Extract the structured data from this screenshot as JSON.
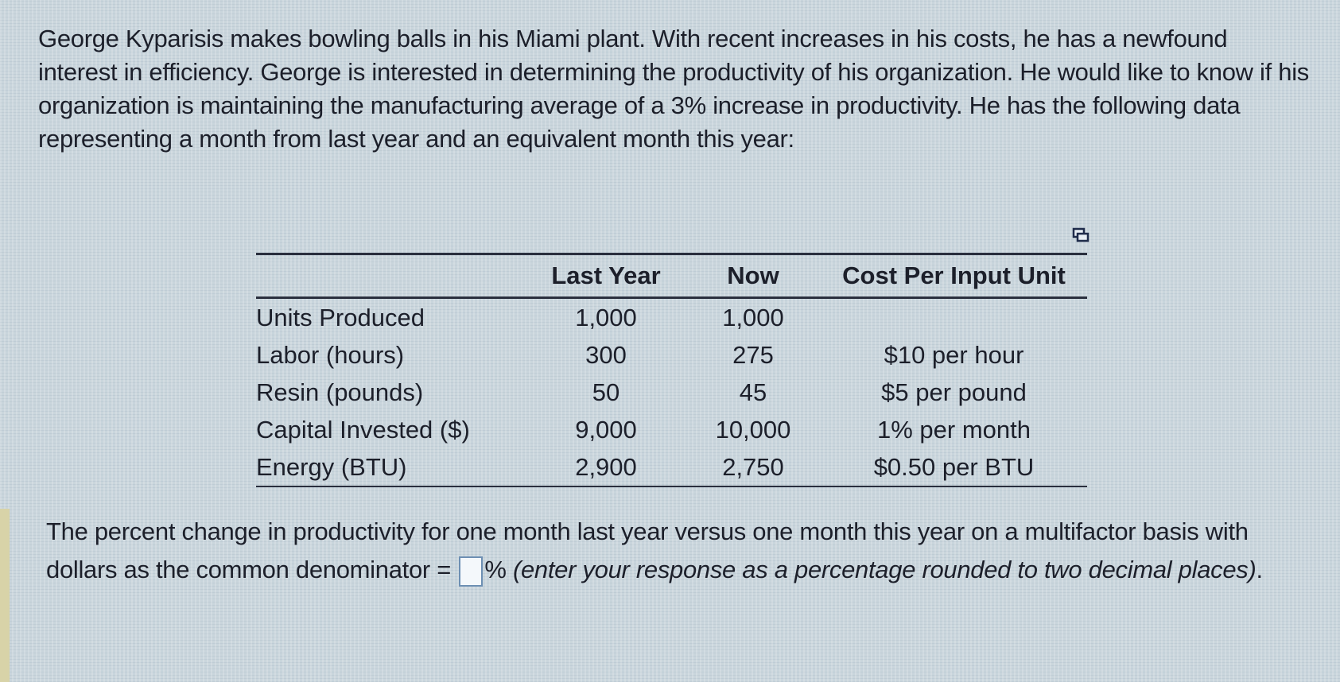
{
  "problem": {
    "intro": "George Kyparisis makes bowling balls in his Miami plant. With recent increases in his costs, he has a newfound interest in efficiency. George is interested in determining the productivity of his organization. He would like to know if his organization is maintaining the manufacturing average of a 3% increase in productivity. He has the following data representing a month from last year and an equivalent month this year:"
  },
  "table": {
    "headers": [
      "",
      "Last Year",
      "Now",
      "Cost Per Input Unit"
    ],
    "rows": [
      [
        "Units Produced",
        "1,000",
        "1,000",
        ""
      ],
      [
        "Labor (hours)",
        "300",
        "275",
        "$10 per hour"
      ],
      [
        "Resin (pounds)",
        "50",
        "45",
        "$5 per pound"
      ],
      [
        "Capital Invested ($)",
        "9,000",
        "10,000",
        "1% per month"
      ],
      [
        "Energy (BTU)",
        "2,900",
        "2,750",
        "$0.50 per BTU"
      ]
    ],
    "copy_icon": "copy-table-icon"
  },
  "question": {
    "before": "The percent change in productivity for one month last year versus one month this year on a multifactor basis with dollars as the common denominator =",
    "answer_value": "",
    "after_unit": "%",
    "hint": "(enter your response as a percentage rounded to two decimal places)",
    "end": "."
  }
}
